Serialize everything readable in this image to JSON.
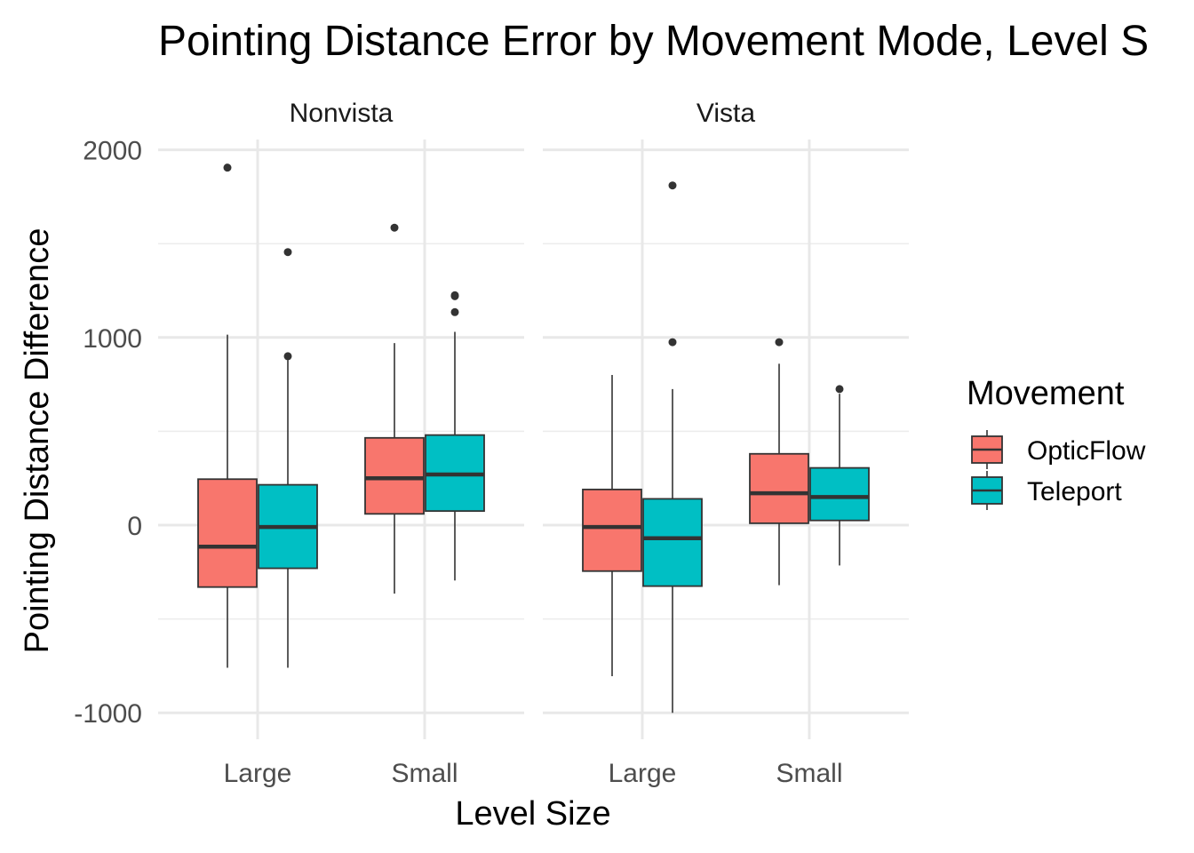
{
  "chart_data": {
    "type": "box",
    "title": "Pointing Distance Error by Movement Mode, Level S",
    "xlabel": "Level Size",
    "ylabel": "Pointing Distance Difference",
    "ylim": [
      -1050,
      2060
    ],
    "yticks": [
      -1000,
      0,
      1000,
      2000
    ],
    "yticklabels": [
      "-1000",
      "0",
      "1000",
      "2000"
    ],
    "categories": [
      "Large",
      "Small"
    ],
    "grid": true,
    "legend": {
      "title": "Movement",
      "position": "right",
      "entries": [
        {
          "name": "OpticFlow",
          "color": "#F8766D"
        },
        {
          "name": "Teleport",
          "color": "#00BFC4"
        }
      ]
    },
    "facets": [
      {
        "name": "Nonvista",
        "groups": [
          {
            "category": "Large",
            "series": "OpticFlow",
            "lower_whisker": -760,
            "q1": -330,
            "median": -115,
            "q3": 245,
            "upper_whisker": 1015,
            "outliers": [
              1905
            ]
          },
          {
            "category": "Large",
            "series": "Teleport",
            "lower_whisker": -760,
            "q1": -230,
            "median": -10,
            "q3": 215,
            "upper_whisker": 880,
            "outliers": [
              900,
              1455
            ]
          },
          {
            "category": "Small",
            "series": "OpticFlow",
            "lower_whisker": -365,
            "q1": 60,
            "median": 250,
            "q3": 465,
            "upper_whisker": 970,
            "outliers": [
              1585
            ]
          },
          {
            "category": "Small",
            "series": "Teleport",
            "lower_whisker": -295,
            "q1": 75,
            "median": 270,
            "q3": 480,
            "upper_whisker": 1030,
            "outliers": [
              1135,
              1220,
              1225
            ]
          }
        ]
      },
      {
        "name": "Vista",
        "groups": [
          {
            "category": "Large",
            "series": "OpticFlow",
            "lower_whisker": -805,
            "q1": -245,
            "median": -10,
            "q3": 190,
            "upper_whisker": 800,
            "outliers": []
          },
          {
            "category": "Large",
            "series": "Teleport",
            "lower_whisker": -1000,
            "q1": -325,
            "median": -70,
            "q3": 140,
            "upper_whisker": 725,
            "outliers": [
              975,
              1810
            ]
          },
          {
            "category": "Small",
            "series": "OpticFlow",
            "lower_whisker": -320,
            "q1": 10,
            "median": 170,
            "q3": 380,
            "upper_whisker": 860,
            "outliers": [
              975
            ]
          },
          {
            "category": "Small",
            "series": "Teleport",
            "lower_whisker": -215,
            "q1": 25,
            "median": 150,
            "q3": 305,
            "upper_whisker": 700,
            "outliers": [
              725
            ]
          }
        ]
      }
    ]
  }
}
